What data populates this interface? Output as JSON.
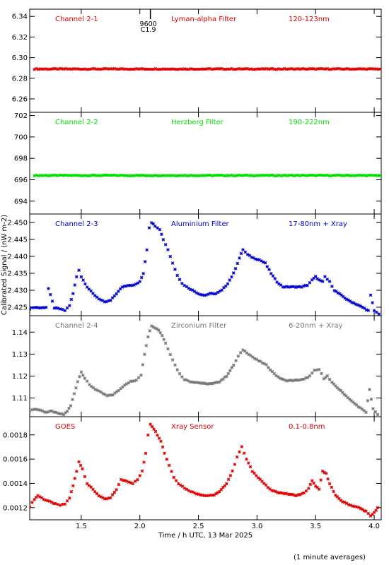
{
  "figure": {
    "ylabel": "Calibrated Signal / (nW m-2)",
    "xlabel": "Time / h UTC, 13 Mar 2025",
    "footnote": "(1 minute averages)",
    "marker": {
      "x": 2.09,
      "labels": [
        "9600",
        "C1.9"
      ]
    },
    "xticks": [
      1.5,
      2.0,
      2.5,
      3.0,
      3.5,
      4.0
    ],
    "xticklabels": [
      "1.5",
      "2.0",
      "2.5",
      "3.0",
      "3.5",
      "4.0"
    ],
    "xlim": [
      1.06,
      4.06
    ]
  },
  "chart_data": [
    {
      "type": "scatter",
      "color": "#dd0000",
      "labels": {
        "channel": "Channel 2-1",
        "filter": "Lyman-alpha Filter",
        "band": "120-123nm"
      },
      "ylim": [
        6.247,
        6.347
      ],
      "yticks": [
        6.26,
        6.28,
        6.3,
        6.32,
        6.34
      ],
      "yticklabels": [
        "6.26",
        "6.28",
        "6.30",
        "6.32",
        "6.34"
      ],
      "series": [
        {
          "values": [
            [
              1.1,
              6.289
            ],
            [
              1.3,
              6.289
            ],
            [
              1.5,
              6.289
            ],
            [
              1.7,
              6.289
            ],
            [
              1.9,
              6.289
            ],
            [
              2.1,
              6.289
            ],
            [
              2.3,
              6.289
            ],
            [
              2.5,
              6.289
            ],
            [
              2.7,
              6.289
            ],
            [
              2.9,
              6.289
            ],
            [
              3.1,
              6.289
            ],
            [
              3.3,
              6.289
            ],
            [
              3.5,
              6.289
            ],
            [
              3.7,
              6.289
            ],
            [
              3.9,
              6.289
            ],
            [
              4.05,
              6.289
            ]
          ]
        }
      ]
    },
    {
      "type": "scatter",
      "color": "#00dd00",
      "labels": {
        "channel": "Channel 2-2",
        "filter": "Herzberg Filter",
        "band": "190-222nm"
      },
      "ylim": [
        692.8,
        702.3
      ],
      "yticks": [
        694,
        696,
        698,
        700,
        702
      ],
      "yticklabels": [
        "694",
        "696",
        "698",
        "700",
        "702"
      ],
      "series": [
        {
          "values": [
            [
              1.1,
              696.4
            ],
            [
              1.3,
              696.4
            ],
            [
              1.5,
              696.4
            ],
            [
              1.7,
              696.4
            ],
            [
              1.9,
              696.4
            ],
            [
              2.1,
              696.4
            ],
            [
              2.3,
              696.4
            ],
            [
              2.5,
              696.4
            ],
            [
              2.7,
              696.4
            ],
            [
              2.9,
              696.4
            ],
            [
              3.1,
              696.4
            ],
            [
              3.3,
              696.4
            ],
            [
              3.5,
              696.4
            ],
            [
              3.7,
              696.4
            ],
            [
              3.9,
              696.4
            ],
            [
              4.05,
              696.4
            ]
          ]
        }
      ]
    },
    {
      "type": "scatter",
      "color": "#0000cc",
      "labels": {
        "channel": "Channel 2-3",
        "filter": "Aluminium Filter",
        "band": "17-80nm + Xray"
      },
      "ylim": [
        2.4225,
        2.4525
      ],
      "yticks": [
        2.425,
        2.43,
        2.435,
        2.44,
        2.445,
        2.45
      ],
      "yticklabels": [
        "2.425",
        "2.430",
        "2.435",
        "2.440",
        "2.445",
        "2.450"
      ],
      "series": [
        {
          "values": [
            [
              1.06,
              2.4245
            ],
            [
              1.1,
              2.425
            ],
            [
              1.15,
              2.4248
            ],
            [
              1.2,
              2.425
            ],
            [
              1.22,
              2.4305
            ],
            [
              1.27,
              2.4248
            ],
            [
              1.32,
              2.4245
            ],
            [
              1.36,
              2.424
            ],
            [
              1.4,
              2.4255
            ],
            [
              1.43,
              2.429
            ],
            [
              1.46,
              2.434
            ],
            [
              1.48,
              2.436
            ],
            [
              1.5,
              2.434
            ],
            [
              1.55,
              2.431
            ],
            [
              1.6,
              2.429
            ],
            [
              1.65,
              2.4275
            ],
            [
              1.7,
              2.4265
            ],
            [
              1.75,
              2.427
            ],
            [
              1.8,
              2.429
            ],
            [
              1.85,
              2.431
            ],
            [
              1.9,
              2.4315
            ],
            [
              1.95,
              2.4315
            ],
            [
              2.0,
              2.4325
            ],
            [
              2.03,
              2.435
            ],
            [
              2.06,
              2.442
            ],
            [
              2.08,
              2.4485
            ],
            [
              2.1,
              2.45
            ],
            [
              2.13,
              2.449
            ],
            [
              2.17,
              2.448
            ],
            [
              2.2,
              2.445
            ],
            [
              2.24,
              2.442
            ],
            [
              2.28,
              2.438
            ],
            [
              2.32,
              2.4345
            ],
            [
              2.36,
              2.432
            ],
            [
              2.4,
              2.431
            ],
            [
              2.45,
              2.43
            ],
            [
              2.5,
              2.429
            ],
            [
              2.55,
              2.4285
            ],
            [
              2.6,
              2.429
            ],
            [
              2.65,
              2.429
            ],
            [
              2.7,
              2.43
            ],
            [
              2.75,
              2.432
            ],
            [
              2.8,
              2.435
            ],
            [
              2.85,
              2.4395
            ],
            [
              2.88,
              2.442
            ],
            [
              2.92,
              2.4405
            ],
            [
              2.97,
              2.4395
            ],
            [
              3.02,
              2.439
            ],
            [
              3.07,
              2.438
            ],
            [
              3.12,
              2.435
            ],
            [
              3.17,
              2.4325
            ],
            [
              3.22,
              2.431
            ],
            [
              3.3,
              2.431
            ],
            [
              3.38,
              2.431
            ],
            [
              3.43,
              2.4315
            ],
            [
              3.47,
              2.433
            ],
            [
              3.5,
              2.434
            ],
            [
              3.53,
              2.433
            ],
            [
              3.56,
              2.4325
            ],
            [
              3.58,
              2.434
            ],
            [
              3.62,
              2.4325
            ],
            [
              3.66,
              2.43
            ],
            [
              3.72,
              2.4285
            ],
            [
              3.78,
              2.427
            ],
            [
              3.84,
              2.426
            ],
            [
              3.9,
              2.425
            ],
            [
              3.95,
              2.424
            ],
            [
              3.97,
              2.4285
            ],
            [
              4.0,
              2.424
            ],
            [
              4.04,
              2.423
            ]
          ]
        }
      ]
    },
    {
      "type": "scatter",
      "color": "#777777",
      "labels": {
        "channel": "Channel 2-4",
        "filter": "Zirconium Filter",
        "band": "6-20nm + Xray"
      },
      "ylim": [
        1.1015,
        1.1475
      ],
      "yticks": [
        1.11,
        1.12,
        1.13,
        1.14
      ],
      "yticklabels": [
        "1.11",
        "1.12",
        "1.13",
        "1.14"
      ],
      "series": [
        {
          "values": [
            [
              1.06,
              1.104
            ],
            [
              1.1,
              1.105
            ],
            [
              1.15,
              1.1045
            ],
            [
              1.2,
              1.1035
            ],
            [
              1.25,
              1.104
            ],
            [
              1.3,
              1.103
            ],
            [
              1.35,
              1.1025
            ],
            [
              1.38,
              1.104
            ],
            [
              1.41,
              1.1065
            ],
            [
              1.44,
              1.112
            ],
            [
              1.47,
              1.1175
            ],
            [
              1.5,
              1.122
            ],
            [
              1.53,
              1.119
            ],
            [
              1.57,
              1.116
            ],
            [
              1.62,
              1.114
            ],
            [
              1.67,
              1.1125
            ],
            [
              1.72,
              1.111
            ],
            [
              1.77,
              1.1115
            ],
            [
              1.82,
              1.1135
            ],
            [
              1.87,
              1.116
            ],
            [
              1.92,
              1.1175
            ],
            [
              1.97,
              1.118
            ],
            [
              2.01,
              1.1205
            ],
            [
              2.04,
              1.13
            ],
            [
              2.07,
              1.138
            ],
            [
              2.1,
              1.143
            ],
            [
              2.13,
              1.142
            ],
            [
              2.16,
              1.141
            ],
            [
              2.19,
              1.1385
            ],
            [
              2.22,
              1.135
            ],
            [
              2.26,
              1.13
            ],
            [
              2.3,
              1.125
            ],
            [
              2.34,
              1.121
            ],
            [
              2.38,
              1.1185
            ],
            [
              2.43,
              1.1175
            ],
            [
              2.5,
              1.117
            ],
            [
              2.56,
              1.1165
            ],
            [
              2.62,
              1.1165
            ],
            [
              2.68,
              1.1175
            ],
            [
              2.74,
              1.12
            ],
            [
              2.8,
              1.125
            ],
            [
              2.84,
              1.129
            ],
            [
              2.88,
              1.132
            ],
            [
              2.93,
              1.13
            ],
            [
              2.98,
              1.128
            ],
            [
              3.03,
              1.1265
            ],
            [
              3.08,
              1.125
            ],
            [
              3.13,
              1.122
            ],
            [
              3.18,
              1.1195
            ],
            [
              3.24,
              1.118
            ],
            [
              3.32,
              1.118
            ],
            [
              3.4,
              1.1185
            ],
            [
              3.45,
              1.12
            ],
            [
              3.49,
              1.1225
            ],
            [
              3.53,
              1.123
            ],
            [
              3.57,
              1.119
            ],
            [
              3.6,
              1.12
            ],
            [
              3.64,
              1.117
            ],
            [
              3.7,
              1.114
            ],
            [
              3.76,
              1.111
            ],
            [
              3.82,
              1.108
            ],
            [
              3.88,
              1.1055
            ],
            [
              3.93,
              1.1035
            ],
            [
              3.96,
              1.114
            ],
            [
              3.99,
              1.105
            ],
            [
              4.03,
              1.1025
            ]
          ]
        }
      ]
    },
    {
      "type": "scatter",
      "color": "#dd0000",
      "labels": {
        "channel": "GOES",
        "filter": "Xray Sensor",
        "band": "0.1-0.8nm"
      },
      "ylim": [
        0.0011,
        0.00195
      ],
      "yticks": [
        0.0012,
        0.0014,
        0.0016,
        0.0018
      ],
      "yticklabels": [
        "0.0012",
        "0.0014",
        "0.0016",
        "0.0018"
      ],
      "series": [
        {
          "values": [
            [
              1.06,
              0.00121
            ],
            [
              1.1,
              0.00127
            ],
            [
              1.13,
              0.0013
            ],
            [
              1.18,
              0.00127
            ],
            [
              1.23,
              0.00125
            ],
            [
              1.28,
              0.00123
            ],
            [
              1.32,
              0.00122
            ],
            [
              1.36,
              0.00123
            ],
            [
              1.4,
              0.00128
            ],
            [
              1.43,
              0.00138
            ],
            [
              1.46,
              0.0015
            ],
            [
              1.48,
              0.00158
            ],
            [
              1.51,
              0.00152
            ],
            [
              1.55,
              0.0014
            ],
            [
              1.6,
              0.00135
            ],
            [
              1.65,
              0.0013
            ],
            [
              1.7,
              0.00127
            ],
            [
              1.75,
              0.00128
            ],
            [
              1.8,
              0.00135
            ],
            [
              1.84,
              0.00143
            ],
            [
              1.89,
              0.00142
            ],
            [
              1.94,
              0.0014
            ],
            [
              1.98,
              0.00143
            ],
            [
              2.02,
              0.0015
            ],
            [
              2.05,
              0.00165
            ],
            [
              2.07,
              0.0018
            ],
            [
              2.09,
              0.00189
            ],
            [
              2.12,
              0.00185
            ],
            [
              2.15,
              0.0018
            ],
            [
              2.18,
              0.00175
            ],
            [
              2.21,
              0.00165
            ],
            [
              2.25,
              0.00155
            ],
            [
              2.29,
              0.00145
            ],
            [
              2.33,
              0.0014
            ],
            [
              2.4,
              0.00135
            ],
            [
              2.47,
              0.00132
            ],
            [
              2.55,
              0.0013
            ],
            [
              2.62,
              0.0013
            ],
            [
              2.68,
              0.00133
            ],
            [
              2.74,
              0.0014
            ],
            [
              2.79,
              0.0015
            ],
            [
              2.83,
              0.00162
            ],
            [
              2.87,
              0.0017
            ],
            [
              2.91,
              0.0016
            ],
            [
              2.96,
              0.0015
            ],
            [
              3.01,
              0.00145
            ],
            [
              3.06,
              0.0014
            ],
            [
              3.11,
              0.00135
            ],
            [
              3.16,
              0.00133
            ],
            [
              3.22,
              0.00132
            ],
            [
              3.28,
              0.00131
            ],
            [
              3.34,
              0.0013
            ],
            [
              3.4,
              0.00132
            ],
            [
              3.44,
              0.00136
            ],
            [
              3.47,
              0.00142
            ],
            [
              3.5,
              0.00138
            ],
            [
              3.53,
              0.00135
            ],
            [
              3.56,
              0.0015
            ],
            [
              3.59,
              0.00148
            ],
            [
              3.62,
              0.0014
            ],
            [
              3.67,
              0.0013
            ],
            [
              3.73,
              0.00125
            ],
            [
              3.8,
              0.00122
            ],
            [
              3.87,
              0.0012
            ],
            [
              3.93,
              0.00117
            ],
            [
              3.97,
              0.00113
            ],
            [
              4.0,
              0.00116
            ],
            [
              4.03,
              0.0012
            ]
          ]
        }
      ]
    }
  ]
}
